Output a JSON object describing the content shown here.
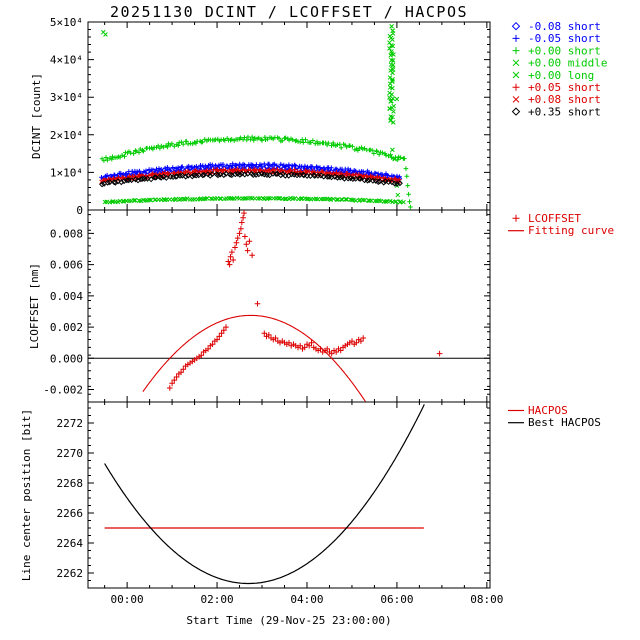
{
  "chart_data": {
    "type": "scatter",
    "title": "20251130 DCINT / LCOFFSET / HACPOS",
    "xlabel": "Start Time (29-Nov-25 23:00:00)",
    "xlim": [
      -0.87,
      8.07
    ],
    "x_ticks": [
      {
        "v": 0,
        "t": "00:00"
      },
      {
        "v": 2,
        "t": "02:00"
      },
      {
        "v": 4,
        "t": "04:00"
      },
      {
        "v": 6,
        "t": "06:00"
      },
      {
        "v": 8,
        "t": "08:00"
      }
    ],
    "x_minor_step": 0.5,
    "colors": {
      "red": "#dd0000",
      "green": "#00cc00",
      "blue": "#0000ff",
      "black": "#000000"
    },
    "panels": [
      {
        "id": "dcint",
        "ylabel": "DCINT [count]",
        "ylim": [
          0,
          50000
        ],
        "yticks": [
          {
            "v": 0,
            "t": "0"
          },
          {
            "v": 10000,
            "t": "1×10⁴"
          },
          {
            "v": 20000,
            "t": "2×10⁴"
          },
          {
            "v": 30000,
            "t": "3×10⁴"
          },
          {
            "v": 40000,
            "t": "4×10⁴"
          },
          {
            "v": 50000,
            "t": "5×10⁴"
          }
        ],
        "yminor": 2000,
        "legend": [
          {
            "symbol": "diamond",
            "color": "#0000ff",
            "label": "-0.08 short"
          },
          {
            "symbol": "plus",
            "color": "#0000ff",
            "label": "-0.05 short"
          },
          {
            "symbol": "plus",
            "color": "#00cc00",
            "label": "+0.00 short"
          },
          {
            "symbol": "cross",
            "color": "#00cc00",
            "label": "+0.00 middle"
          },
          {
            "symbol": "cross",
            "color": "#00cc00",
            "label": "+0.00 long"
          },
          {
            "symbol": "plus",
            "color": "#dd0000",
            "label": "+0.05 short"
          },
          {
            "symbol": "cross",
            "color": "#dd0000",
            "label": "+0.08 short"
          },
          {
            "symbol": "diamond",
            "color": "#000000",
            "label": "+0.35 short"
          }
        ],
        "series": [
          {
            "label": "-0.08 short",
            "symbol": "diamond",
            "color": "#0000ff",
            "arc": {
              "t0": -0.55,
              "t1": 6.05,
              "edge": 8400,
              "peak": 11400,
              "jitter": 260,
              "step": 0.06,
              "seed": 11
            }
          },
          {
            "label": "-0.05 short",
            "symbol": "plus",
            "color": "#0000ff",
            "arc": {
              "t0": -0.55,
              "t1": 6.05,
              "edge": 8900,
              "peak": 12100,
              "jitter": 260,
              "step": 0.06,
              "seed": 22
            }
          },
          {
            "label": "+0.00 short",
            "symbol": "plus",
            "color": "#00cc00",
            "arc": {
              "t0": -0.55,
              "t1": 6.2,
              "edge": 13200,
              "peak": 19000,
              "jitter": 500,
              "step": 0.04,
              "seed": 33
            },
            "points": [
              [
                6.2,
                11000
              ],
              [
                6.22,
                9000
              ],
              [
                6.24,
                6500
              ],
              [
                6.26,
                4200
              ],
              [
                6.28,
                2200
              ],
              [
                6.3,
                800
              ]
            ]
          },
          {
            "label": "+0.00 middle",
            "symbol": "cross",
            "color": "#00cc00",
            "streak": {
              "t": 5.88,
              "y0": 48600,
              "y1": 23000,
              "n": 46,
              "jx": 0.05,
              "jy": 500,
              "seed": 44
            },
            "points": [
              [
                -0.53,
                47300
              ],
              [
                -0.48,
                46700
              ],
              [
                5.9,
                16000
              ],
              [
                5.95,
                13500
              ],
              [
                6.0,
                6500
              ],
              [
                6.02,
                4000
              ],
              [
                6.0,
                29500
              ]
            ]
          },
          {
            "label": "+0.00 long",
            "symbol": "cross",
            "color": "#00cc00",
            "arc": {
              "t0": -0.5,
              "t1": 6.15,
              "edge": 2100,
              "peak": 3100,
              "jitter": 140,
              "step": 0.05,
              "seed": 55
            }
          },
          {
            "label": "+0.05 short",
            "symbol": "plus",
            "color": "#dd0000",
            "arc": {
              "t0": -0.55,
              "t1": 6.05,
              "edge": 8000,
              "peak": 10700,
              "jitter": 240,
              "step": 0.06,
              "seed": 66
            }
          },
          {
            "label": "+0.08 short",
            "symbol": "cross",
            "color": "#dd0000",
            "arc": {
              "t0": -0.55,
              "t1": 6.05,
              "edge": 7600,
              "peak": 10200,
              "jitter": 240,
              "step": 0.06,
              "seed": 77
            }
          },
          {
            "label": "+0.35 short",
            "symbol": "diamond",
            "color": "#000000",
            "arc": {
              "t0": -0.55,
              "t1": 6.05,
              "edge": 7000,
              "peak": 9500,
              "jitter": 240,
              "step": 0.06,
              "seed": 88
            }
          }
        ]
      },
      {
        "id": "lcoffset",
        "ylabel": "LCOFFSET [nm]",
        "ylim": [
          -0.0028,
          0.0095
        ],
        "yticks": [
          {
            "v": -0.002,
            "t": "-0.002"
          },
          {
            "v": 0.0,
            "t": "0.000"
          },
          {
            "v": 0.002,
            "t": "0.002"
          },
          {
            "v": 0.004,
            "t": "0.004"
          },
          {
            "v": 0.006,
            "t": "0.006"
          },
          {
            "v": 0.008,
            "t": "0.008"
          }
        ],
        "yminor": 0.0005,
        "zero_line": true,
        "legend": [
          {
            "symbol": "plus",
            "color": "#dd0000",
            "label": "LCOFFSET"
          },
          {
            "symbol": "line",
            "color": "#dd0000",
            "label": "Fitting curve"
          }
        ],
        "scatter": {
          "symbol": "plus",
          "color": "#dd0000",
          "points": [
            [
              0.95,
              -0.0019
            ],
            [
              1.0,
              -0.0016
            ],
            [
              1.05,
              -0.0014
            ],
            [
              1.1,
              -0.0012
            ],
            [
              1.15,
              -0.001
            ],
            [
              1.2,
              -0.0009
            ],
            [
              1.25,
              -0.0007
            ],
            [
              1.3,
              -0.0005
            ],
            [
              1.35,
              -0.0004
            ],
            [
              1.4,
              -0.0003
            ],
            [
              1.45,
              -0.0002
            ],
            [
              1.5,
              -0.0001
            ],
            [
              1.55,
              0.0
            ],
            [
              1.6,
              0.0001
            ],
            [
              1.65,
              0.0002
            ],
            [
              1.7,
              0.0004
            ],
            [
              1.75,
              0.0005
            ],
            [
              1.8,
              0.0006
            ],
            [
              1.85,
              0.0008
            ],
            [
              1.9,
              0.0009
            ],
            [
              1.95,
              0.0011
            ],
            [
              2.0,
              0.0012
            ],
            [
              2.05,
              0.0014
            ],
            [
              2.1,
              0.0016
            ],
            [
              2.15,
              0.0018
            ],
            [
              2.2,
              0.002
            ],
            [
              2.25,
              0.0062
            ],
            [
              2.28,
              0.006
            ],
            [
              2.3,
              0.0065
            ],
            [
              2.33,
              0.0068
            ],
            [
              2.36,
              0.0063
            ],
            [
              2.4,
              0.0071
            ],
            [
              2.43,
              0.0074
            ],
            [
              2.46,
              0.0077
            ],
            [
              2.5,
              0.008
            ],
            [
              2.53,
              0.0083
            ],
            [
              2.55,
              0.0087
            ],
            [
              2.58,
              0.009
            ],
            [
              2.6,
              0.0093
            ],
            [
              2.62,
              0.0078
            ],
            [
              2.65,
              0.0073
            ],
            [
              2.68,
              0.0069
            ],
            [
              2.72,
              0.0075
            ],
            [
              2.78,
              0.0066
            ],
            [
              2.9,
              0.0035
            ],
            [
              3.05,
              0.0016
            ],
            [
              3.1,
              0.0014
            ],
            [
              3.15,
              0.0015
            ],
            [
              3.2,
              0.0013
            ],
            [
              3.25,
              0.0012
            ],
            [
              3.3,
              0.0013
            ],
            [
              3.35,
              0.0011
            ],
            [
              3.4,
              0.001
            ],
            [
              3.45,
              0.0011
            ],
            [
              3.5,
              0.001
            ],
            [
              3.55,
              0.0009
            ],
            [
              3.6,
              0.001
            ],
            [
              3.65,
              0.0008
            ],
            [
              3.7,
              0.0009
            ],
            [
              3.75,
              0.0008
            ],
            [
              3.8,
              0.0007
            ],
            [
              3.85,
              0.0008
            ],
            [
              3.9,
              0.0006
            ],
            [
              3.95,
              0.0007
            ],
            [
              4.0,
              0.0009
            ],
            [
              4.05,
              0.0008
            ],
            [
              4.1,
              0.001
            ],
            [
              4.15,
              0.0007
            ],
            [
              4.2,
              0.0006
            ],
            [
              4.25,
              0.0005
            ],
            [
              4.3,
              0.0006
            ],
            [
              4.35,
              0.0004
            ],
            [
              4.4,
              0.0005
            ],
            [
              4.45,
              0.0006
            ],
            [
              4.5,
              0.0004
            ],
            [
              4.55,
              0.0003
            ],
            [
              4.6,
              0.0005
            ],
            [
              4.65,
              0.0004
            ],
            [
              4.7,
              0.0006
            ],
            [
              4.75,
              0.0005
            ],
            [
              4.8,
              0.0007
            ],
            [
              4.85,
              0.0008
            ],
            [
              4.9,
              0.0009
            ],
            [
              4.95,
              0.001
            ],
            [
              5.0,
              0.0011
            ],
            [
              5.05,
              0.0009
            ],
            [
              5.1,
              0.001
            ],
            [
              5.15,
              0.0012
            ],
            [
              5.2,
              0.0011
            ],
            [
              5.25,
              0.0013
            ],
            [
              6.95,
              0.0003
            ]
          ]
        },
        "fit_curve": {
          "color": "#dd0000",
          "peak": 0.00275,
          "tmid": 2.75,
          "zero_halfwidth": 1.8,
          "t0": 0.35,
          "t1": 5.5
        }
      },
      {
        "id": "hacpos",
        "ylabel": "Line center position [bit]",
        "ylim": [
          2261,
          2273.4
        ],
        "yticks": [
          {
            "v": 2262,
            "t": "2262"
          },
          {
            "v": 2264,
            "t": "2264"
          },
          {
            "v": 2266,
            "t": "2266"
          },
          {
            "v": 2268,
            "t": "2268"
          },
          {
            "v": 2270,
            "t": "2270"
          },
          {
            "v": 2272,
            "t": "2272"
          }
        ],
        "yminor": 0.5,
        "legend": [
          {
            "symbol": "line",
            "color": "#dd0000",
            "label": "HACPOS"
          },
          {
            "symbol": "line",
            "color": "#000000",
            "label": "Best HACPOS"
          }
        ],
        "hacpos_line": {
          "color": "#dd0000",
          "y": 2265,
          "t0": -0.5,
          "t1": 6.6
        },
        "best_curve": {
          "color": "#000000",
          "ymin": 2261.3,
          "tmin": 2.7,
          "a": 0.781,
          "t0": -0.5,
          "t1": 6.85
        }
      }
    ]
  }
}
